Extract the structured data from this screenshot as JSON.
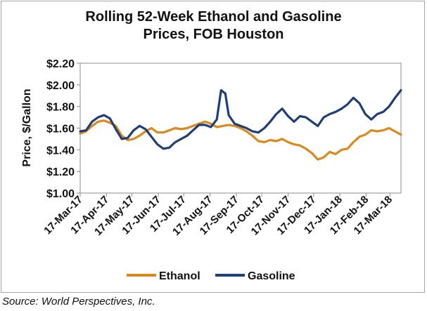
{
  "chart_data": {
    "type": "line",
    "title_lines": [
      "Rolling 52-Week Ethanol and Gasoline",
      "Prices, FOB Houston"
    ],
    "ylabel": "Price, $/Gallon",
    "xlabel": "",
    "ylim": [
      1.0,
      2.2
    ],
    "yticks": [
      1.0,
      1.2,
      1.4,
      1.6,
      1.8,
      2.0,
      2.2
    ],
    "ytick_labels": [
      "$1.00",
      "$1.20",
      "$1.40",
      "$1.60",
      "$1.80",
      "$2.00",
      "$2.20"
    ],
    "xlim": [
      "2017-03-17",
      "2018-03-30"
    ],
    "xtick_dates": [
      "2017-03-17",
      "2017-04-17",
      "2017-05-17",
      "2017-06-17",
      "2017-07-17",
      "2017-08-17",
      "2017-09-17",
      "2017-10-17",
      "2017-11-17",
      "2017-12-17",
      "2018-01-17",
      "2018-02-17",
      "2018-03-17"
    ],
    "xtick_labels": [
      "17-Mar-17",
      "17-Apr-17",
      "17-May-17",
      "17-Jun-17",
      "17-Jul-17",
      "17-Aug-17",
      "17-Sep-17",
      "17-Oct-17",
      "17-Nov-17",
      "17-Dec-17",
      "17-Jan-18",
      "17-Feb-18",
      "17-Mar-18"
    ],
    "grid": false,
    "legend_position": "bottom",
    "series": [
      {
        "name": "Ethanol",
        "color": "#D88A1D",
        "points": [
          [
            "2017-03-17",
            1.55
          ],
          [
            "2017-03-24",
            1.57
          ],
          [
            "2017-03-31",
            1.62
          ],
          [
            "2017-04-07",
            1.66
          ],
          [
            "2017-04-14",
            1.67
          ],
          [
            "2017-04-21",
            1.65
          ],
          [
            "2017-04-28",
            1.62
          ],
          [
            "2017-05-05",
            1.53
          ],
          [
            "2017-05-12",
            1.49
          ],
          [
            "2017-05-19",
            1.5
          ],
          [
            "2017-05-26",
            1.53
          ],
          [
            "2017-06-02",
            1.57
          ],
          [
            "2017-06-09",
            1.6
          ],
          [
            "2017-06-16",
            1.56
          ],
          [
            "2017-06-23",
            1.56
          ],
          [
            "2017-06-30",
            1.58
          ],
          [
            "2017-07-07",
            1.6
          ],
          [
            "2017-07-14",
            1.59
          ],
          [
            "2017-07-21",
            1.6
          ],
          [
            "2017-07-28",
            1.62
          ],
          [
            "2017-08-04",
            1.64
          ],
          [
            "2017-08-11",
            1.66
          ],
          [
            "2017-08-18",
            1.64
          ],
          [
            "2017-08-25",
            1.61
          ],
          [
            "2017-09-01",
            1.62
          ],
          [
            "2017-09-08",
            1.63
          ],
          [
            "2017-09-15",
            1.62
          ],
          [
            "2017-09-22",
            1.6
          ],
          [
            "2017-09-29",
            1.57
          ],
          [
            "2017-10-06",
            1.53
          ],
          [
            "2017-10-13",
            1.48
          ],
          [
            "2017-10-20",
            1.47
          ],
          [
            "2017-10-27",
            1.49
          ],
          [
            "2017-11-03",
            1.48
          ],
          [
            "2017-11-10",
            1.5
          ],
          [
            "2017-11-17",
            1.47
          ],
          [
            "2017-11-24",
            1.45
          ],
          [
            "2017-12-01",
            1.44
          ],
          [
            "2017-12-08",
            1.41
          ],
          [
            "2017-12-15",
            1.37
          ],
          [
            "2017-12-22",
            1.31
          ],
          [
            "2017-12-29",
            1.33
          ],
          [
            "2018-01-05",
            1.38
          ],
          [
            "2018-01-12",
            1.36
          ],
          [
            "2018-01-19",
            1.4
          ],
          [
            "2018-01-26",
            1.41
          ],
          [
            "2018-02-02",
            1.47
          ],
          [
            "2018-02-09",
            1.52
          ],
          [
            "2018-02-16",
            1.54
          ],
          [
            "2018-02-23",
            1.58
          ],
          [
            "2018-03-02",
            1.57
          ],
          [
            "2018-03-09",
            1.58
          ],
          [
            "2018-03-16",
            1.6
          ],
          [
            "2018-03-23",
            1.57
          ],
          [
            "2018-03-30",
            1.54
          ]
        ]
      },
      {
        "name": "Gasoline",
        "color": "#1F3E78",
        "points": [
          [
            "2017-03-17",
            1.57
          ],
          [
            "2017-03-24",
            1.58
          ],
          [
            "2017-03-31",
            1.66
          ],
          [
            "2017-04-07",
            1.7
          ],
          [
            "2017-04-14",
            1.72
          ],
          [
            "2017-04-21",
            1.69
          ],
          [
            "2017-04-28",
            1.59
          ],
          [
            "2017-05-05",
            1.5
          ],
          [
            "2017-05-12",
            1.51
          ],
          [
            "2017-05-19",
            1.58
          ],
          [
            "2017-05-26",
            1.62
          ],
          [
            "2017-06-02",
            1.59
          ],
          [
            "2017-06-09",
            1.52
          ],
          [
            "2017-06-16",
            1.45
          ],
          [
            "2017-06-23",
            1.41
          ],
          [
            "2017-06-30",
            1.42
          ],
          [
            "2017-07-07",
            1.47
          ],
          [
            "2017-07-14",
            1.5
          ],
          [
            "2017-07-21",
            1.53
          ],
          [
            "2017-07-28",
            1.58
          ],
          [
            "2017-08-04",
            1.63
          ],
          [
            "2017-08-11",
            1.63
          ],
          [
            "2017-08-18",
            1.61
          ],
          [
            "2017-08-25",
            1.68
          ],
          [
            "2017-08-30",
            1.95
          ],
          [
            "2017-09-04",
            1.92
          ],
          [
            "2017-09-08",
            1.72
          ],
          [
            "2017-09-15",
            1.64
          ],
          [
            "2017-09-22",
            1.62
          ],
          [
            "2017-09-29",
            1.6
          ],
          [
            "2017-10-06",
            1.57
          ],
          [
            "2017-10-13",
            1.56
          ],
          [
            "2017-10-20",
            1.6
          ],
          [
            "2017-10-27",
            1.66
          ],
          [
            "2017-11-03",
            1.73
          ],
          [
            "2017-11-10",
            1.78
          ],
          [
            "2017-11-17",
            1.71
          ],
          [
            "2017-11-24",
            1.66
          ],
          [
            "2017-12-01",
            1.71
          ],
          [
            "2017-12-08",
            1.7
          ],
          [
            "2017-12-15",
            1.66
          ],
          [
            "2017-12-22",
            1.62
          ],
          [
            "2017-12-29",
            1.7
          ],
          [
            "2018-01-05",
            1.73
          ],
          [
            "2018-01-12",
            1.75
          ],
          [
            "2018-01-19",
            1.78
          ],
          [
            "2018-01-26",
            1.82
          ],
          [
            "2018-02-02",
            1.88
          ],
          [
            "2018-02-09",
            1.83
          ],
          [
            "2018-02-16",
            1.73
          ],
          [
            "2018-02-23",
            1.68
          ],
          [
            "2018-03-02",
            1.73
          ],
          [
            "2018-03-09",
            1.75
          ],
          [
            "2018-03-16",
            1.8
          ],
          [
            "2018-03-23",
            1.88
          ],
          [
            "2018-03-30",
            1.95
          ]
        ]
      }
    ],
    "source": "Source: World Perspectives, Inc."
  }
}
